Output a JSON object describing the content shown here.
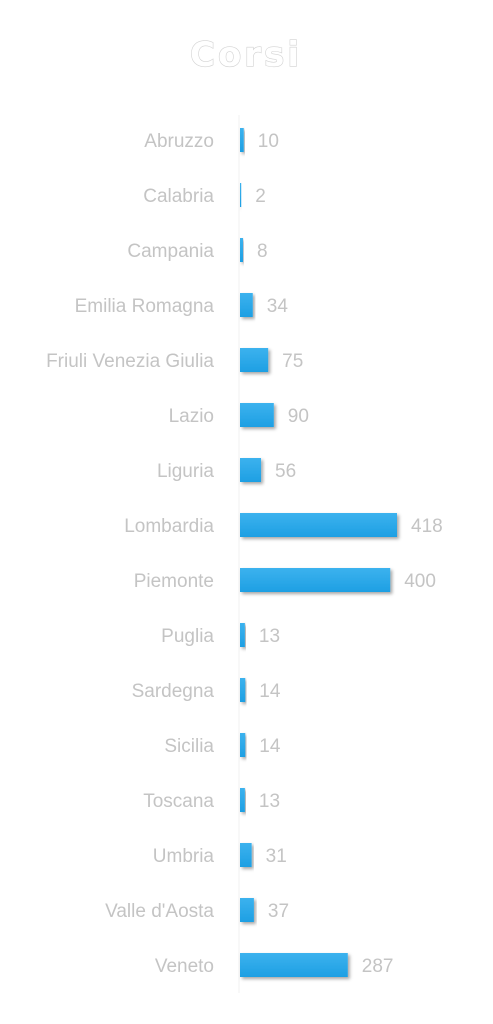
{
  "chart_data": {
    "type": "bar",
    "orientation": "horizontal",
    "title": "Corsi",
    "xlabel": "",
    "ylabel": "",
    "categories": [
      "Abruzzo",
      "Calabria",
      "Campania",
      "Emilia Romagna",
      "Friuli Venezia Giulia",
      "Lazio",
      "Liguria",
      "Lombardia",
      "Piemonte",
      "Puglia",
      "Sardegna",
      "Sicilia",
      "Toscana",
      "Umbria",
      "Valle d'Aosta",
      "Veneto"
    ],
    "values": [
      10,
      2,
      8,
      34,
      75,
      90,
      56,
      418,
      400,
      13,
      14,
      14,
      13,
      31,
      37,
      287
    ],
    "xlim": [
      0,
      418
    ],
    "grid": false,
    "legend": "none",
    "bar_color": "#1e9fe3",
    "bar_color_light": "#3cb2ee",
    "text_color": "#c4c4c4"
  }
}
